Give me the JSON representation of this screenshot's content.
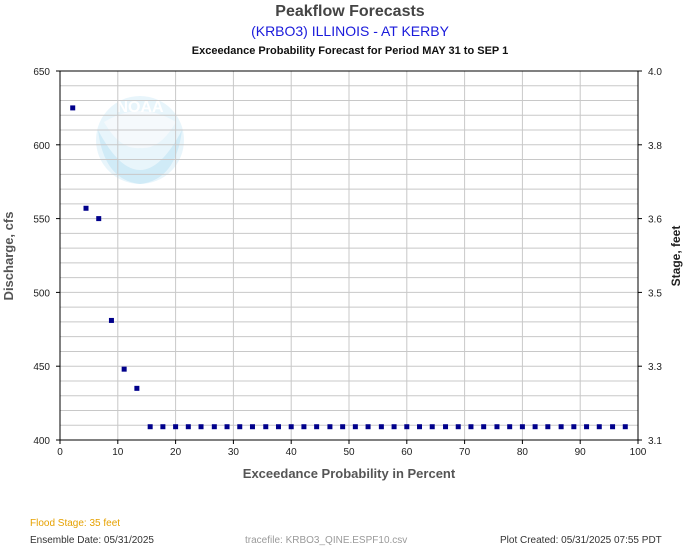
{
  "header": {
    "title": "Peakflow Forecasts",
    "subtitle": "(KRBO3) ILLINOIS - AT KERBY",
    "caption": "Exceedance Probability Forecast for Period MAY 31 to SEP 1"
  },
  "footer": {
    "flood_stage": "Flood Stage: 35 feet",
    "ensemble_date": "Ensemble Date: 05/31/2025",
    "tracefile": "tracefile: KRBO3_QINE.ESPF10.csv",
    "plot_created": "Plot Created: 05/31/2025 07:55 PDT"
  },
  "watermark": {
    "text": "NOAA"
  },
  "colors": {
    "points": "#00008b",
    "grid": "#c8c8c8",
    "flood": "#e6a100",
    "subtitle": "#1a1adb"
  },
  "chart_data": {
    "type": "scatter",
    "xlabel": "Exceedance Probability in Percent",
    "ylabel": "Discharge, cfs",
    "y2label": "Stage, feet",
    "xlim": [
      0,
      100
    ],
    "ylim": [
      400,
      650
    ],
    "y2lim": [
      3.1,
      4.0
    ],
    "xticks": [
      0,
      10,
      20,
      30,
      40,
      50,
      60,
      70,
      80,
      90,
      100
    ],
    "yticks": [
      400,
      450,
      500,
      550,
      600,
      650
    ],
    "y2ticks": [
      "3.1",
      "3.3",
      "3.5",
      "3.6",
      "3.8",
      "4.0"
    ],
    "grid": true,
    "legend": "none",
    "x": [
      2.2,
      4.5,
      6.7,
      8.9,
      11.1,
      13.3,
      15.6,
      17.8,
      20.0,
      22.2,
      24.4,
      26.7,
      28.9,
      31.1,
      33.3,
      35.6,
      37.8,
      40.0,
      42.2,
      44.4,
      46.7,
      48.9,
      51.1,
      53.3,
      55.6,
      57.8,
      60.0,
      62.2,
      64.4,
      66.7,
      68.9,
      71.1,
      73.3,
      75.6,
      77.8,
      80.0,
      82.2,
      84.4,
      86.7,
      88.9,
      91.1,
      93.3,
      95.6,
      97.8
    ],
    "y": [
      625,
      557,
      550,
      481,
      448,
      435,
      409,
      409,
      409,
      409,
      409,
      409,
      409,
      409,
      409,
      409,
      409,
      409,
      409,
      409,
      409,
      409,
      409,
      409,
      409,
      409,
      409,
      409,
      409,
      409,
      409,
      409,
      409,
      409,
      409,
      409,
      409,
      409,
      409,
      409,
      409,
      409,
      409,
      409
    ]
  }
}
